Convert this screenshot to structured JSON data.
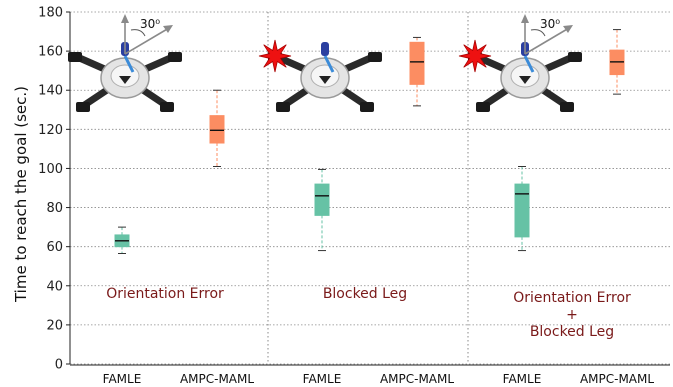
{
  "chart_data": {
    "type": "box",
    "ylabel": "Time to reach the goal (sec.)",
    "ylim": [
      0,
      180
    ],
    "yticks": [
      0,
      20,
      40,
      60,
      80,
      100,
      120,
      140,
      160,
      180
    ],
    "grid": true,
    "panels": [
      {
        "annotation": [
          "Orientation Error"
        ],
        "inset_angle_label": "30⁰",
        "inset_marker": "none",
        "categories": [
          "FAMLE",
          "AMPC-MAML"
        ],
        "boxes": [
          {
            "category": "FAMLE",
            "min": 56.5,
            "q1": 60,
            "median": 63,
            "q3": 66,
            "max": 70,
            "color": "#66c2a5"
          },
          {
            "category": "AMPC-MAML",
            "min": 101,
            "q1": 113,
            "median": 119.5,
            "q3": 127,
            "max": 140,
            "color": "#fc8d62"
          }
        ]
      },
      {
        "annotation": [
          "Blocked Leg"
        ],
        "inset_angle_label": "",
        "inset_marker": "star",
        "categories": [
          "FAMLE",
          "AMPC-MAML"
        ],
        "boxes": [
          {
            "category": "FAMLE",
            "min": 58,
            "q1": 76,
            "median": 86,
            "q3": 92,
            "max": 99.5,
            "color": "#66c2a5"
          },
          {
            "category": "AMPC-MAML",
            "min": 132,
            "q1": 143,
            "median": 154.5,
            "q3": 164.5,
            "max": 167,
            "color": "#fc8d62"
          }
        ]
      },
      {
        "annotation": [
          "Orientation Error",
          "+",
          "Blocked Leg"
        ],
        "inset_angle_label": "30⁰",
        "inset_marker": "star",
        "categories": [
          "FAMLE",
          "AMPC-MAML"
        ],
        "boxes": [
          {
            "category": "FAMLE",
            "min": 58,
            "q1": 65,
            "median": 87,
            "q3": 92,
            "max": 101,
            "color": "#66c2a5"
          },
          {
            "category": "AMPC-MAML",
            "min": 138,
            "q1": 148,
            "median": 154.5,
            "q3": 160.5,
            "max": 171,
            "color": "#fc8d62"
          }
        ]
      }
    ]
  }
}
